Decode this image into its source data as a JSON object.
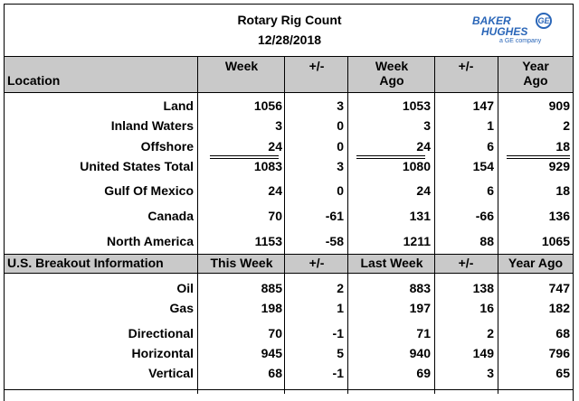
{
  "header": {
    "title": "Rotary Rig Count",
    "date": "12/28/2018",
    "logo_line1": "BAKER",
    "logo_line2": "HUGHES",
    "logo_sub": "a GE company",
    "ge_mark": "GE"
  },
  "columns": {
    "location": "Location",
    "week": "Week",
    "change1": "+/-",
    "week_ago_line1": "Week",
    "week_ago_line2": "Ago",
    "change2": "+/-",
    "year_ago_line1": "Year",
    "year_ago_line2": "Ago"
  },
  "rows": [
    {
      "label": "Land",
      "values": [
        "1056",
        "3",
        "1053",
        "147",
        "909"
      ]
    },
    {
      "label": "Inland Waters",
      "values": [
        "3",
        "0",
        "3",
        "1",
        "2"
      ]
    },
    {
      "label": "Offshore",
      "values": [
        "24",
        "0",
        "24",
        "6",
        "18"
      ]
    },
    {
      "label": "United States Total",
      "values": [
        "1083",
        "3",
        "1080",
        "154",
        "929"
      ]
    },
    {
      "label": "Gulf Of Mexico",
      "values": [
        "24",
        "0",
        "24",
        "6",
        "18"
      ]
    },
    {
      "label": "Canada",
      "values": [
        "70",
        "-61",
        "131",
        "-66",
        "136"
      ]
    },
    {
      "label": "North America",
      "values": [
        "1153",
        "-58",
        "1211",
        "88",
        "1065"
      ]
    }
  ],
  "breakout_header": {
    "label": "U.S. Breakout Information",
    "this_week": "This Week",
    "change1": "+/-",
    "last_week": "Last Week",
    "change2": "+/-",
    "year_ago": "Year Ago"
  },
  "breakout_rows": [
    {
      "label": "Oil",
      "values": [
        "885",
        "2",
        "883",
        "138",
        "747"
      ]
    },
    {
      "label": "Gas",
      "values": [
        "198",
        "1",
        "197",
        "16",
        "182"
      ]
    },
    {
      "label": "Directional",
      "values": [
        "70",
        "-1",
        "71",
        "2",
        "68"
      ]
    },
    {
      "label": "Horizontal",
      "values": [
        "945",
        "5",
        "940",
        "149",
        "796"
      ]
    },
    {
      "label": "Vertical",
      "values": [
        "68",
        "-1",
        "69",
        "3",
        "65"
      ]
    }
  ],
  "colors": {
    "band": "#c9c9c9",
    "logo": "#2a66b8"
  }
}
